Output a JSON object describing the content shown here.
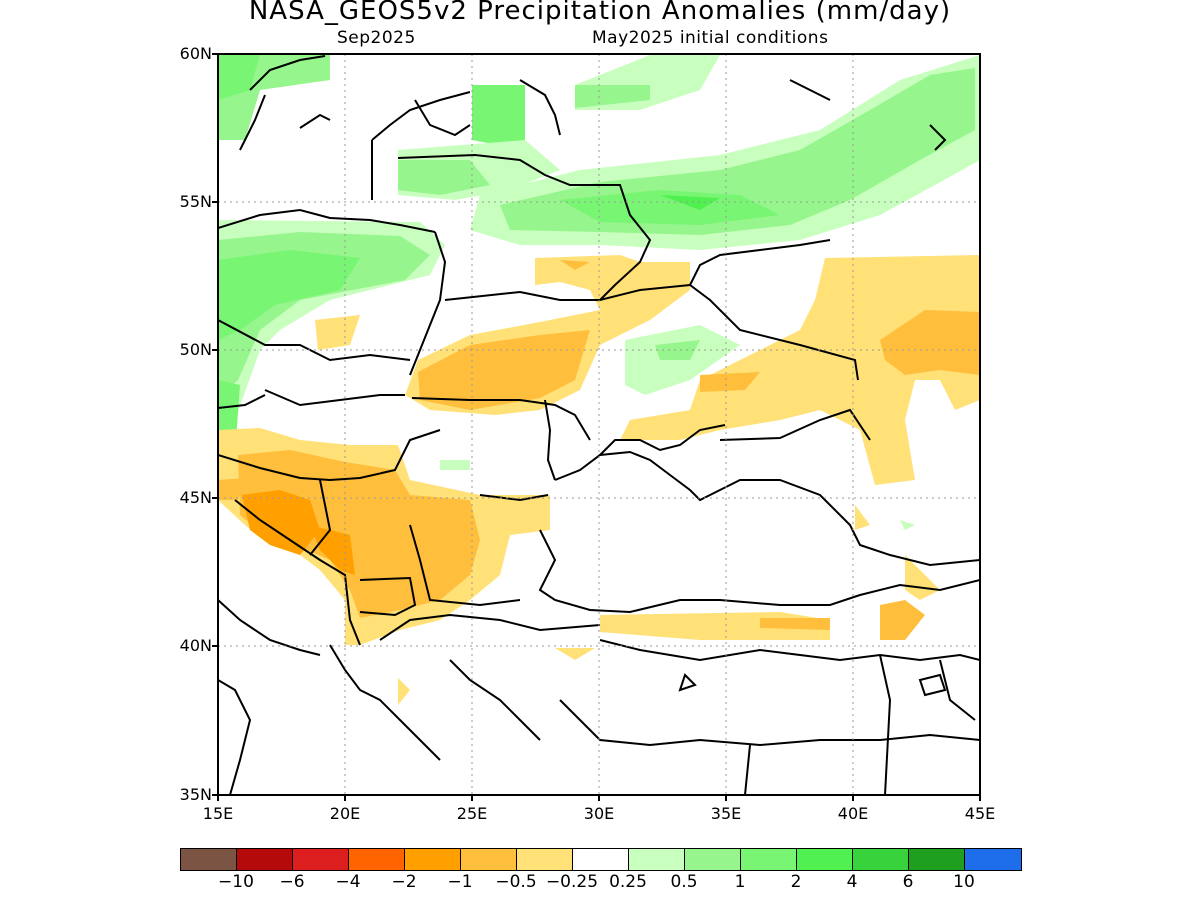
{
  "title": "NASA_GEOS5v2 Precipitation Anomalies (mm/day)",
  "subtitle_left": "Sep2025",
  "subtitle_right": "May2025 initial conditions",
  "map": {
    "lon_range": [
      15,
      45
    ],
    "lat_range": [
      35,
      60
    ],
    "lat_ticks": [
      "60N",
      "55N",
      "50N",
      "45N",
      "40N",
      "35N"
    ],
    "lon_ticks": [
      "15E",
      "20E",
      "25E",
      "30E",
      "35E",
      "40E",
      "45E"
    ],
    "gridlines": "dotted"
  },
  "colorbar": {
    "colors": [
      "#7b5444",
      "#b40a0a",
      "#dc1e1e",
      "#ff6400",
      "#ffa000",
      "#ffbe3c",
      "#ffe178",
      "#ffffff",
      "#c8ffbe",
      "#96f58c",
      "#78f573",
      "#50f050",
      "#37d23c",
      "#1ea01e",
      "#1e6eeb"
    ],
    "labels": [
      "-10",
      "-6",
      "-4",
      "-2",
      "-1",
      "-0.5",
      "-0.25",
      "0.25",
      "0.5",
      "1",
      "2",
      "4",
      "6",
      "10"
    ]
  }
}
